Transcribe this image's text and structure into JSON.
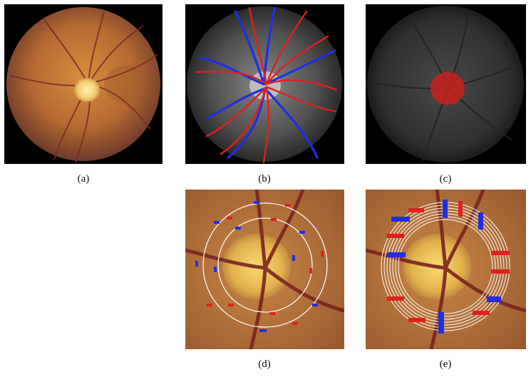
{
  "figure": {
    "panels": [
      {
        "id": "a",
        "caption": "(a)"
      },
      {
        "id": "b",
        "caption": "(b)"
      },
      {
        "id": "c",
        "caption": "(c)"
      },
      {
        "id": "d",
        "caption": "(d)"
      },
      {
        "id": "e",
        "caption": "(e)"
      }
    ]
  },
  "colors": {
    "artery": "#e0201c",
    "vein": "#1f2fe0",
    "circle": "#ffffff",
    "optic_disc_mask": "#c8201c"
  }
}
